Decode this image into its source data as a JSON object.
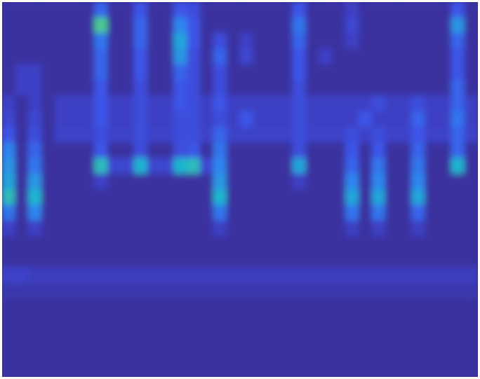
{
  "chart_data": {
    "type": "heatmap",
    "tick_labels": false,
    "clim": [
      0,
      1
    ],
    "cells": [
      [
        0,
        0,
        0,
        0,
        0,
        0,
        0,
        0.3,
        0,
        0,
        0.25,
        0,
        0,
        0.25,
        0.2,
        0,
        0,
        0,
        0,
        0,
        0,
        0,
        0.25,
        0,
        0,
        0,
        0.1,
        0,
        0,
        0,
        0,
        0,
        0,
        0,
        0.25,
        0
      ],
      [
        0,
        0,
        0,
        0,
        0,
        0,
        0,
        0.7,
        0,
        0,
        0.3,
        0,
        0,
        0.4,
        0.25,
        0,
        0,
        0,
        0,
        0,
        0,
        0,
        0.35,
        0,
        0,
        0,
        0.15,
        0,
        0,
        0,
        0,
        0,
        0,
        0,
        0.45,
        0
      ],
      [
        0,
        0,
        0,
        0,
        0,
        0,
        0,
        0.35,
        0,
        0,
        0.3,
        0,
        0,
        0.5,
        0.25,
        0,
        0.2,
        0,
        0.1,
        0,
        0,
        0,
        0.3,
        0,
        0,
        0,
        0.1,
        0,
        0,
        0,
        0,
        0,
        0,
        0,
        0.3,
        0
      ],
      [
        0,
        0,
        0,
        0,
        0,
        0,
        0,
        0.3,
        0,
        0,
        0.25,
        0,
        0,
        0.45,
        0.2,
        0,
        0.3,
        0,
        0.15,
        0,
        0,
        0,
        0.25,
        0,
        0.1,
        0,
        0,
        0,
        0,
        0,
        0,
        0,
        0,
        0,
        0.25,
        0
      ],
      [
        0,
        0.1,
        0.1,
        0,
        0,
        0,
        0,
        0.3,
        0,
        0,
        0.25,
        0,
        0,
        0.3,
        0.2,
        0,
        0.2,
        0,
        0,
        0,
        0,
        0,
        0.25,
        0,
        0,
        0,
        0,
        0,
        0,
        0,
        0,
        0,
        0,
        0,
        0.25,
        0
      ],
      [
        0,
        0.1,
        0.1,
        0,
        0,
        0,
        0,
        0.25,
        0,
        0,
        0.2,
        0,
        0,
        0.25,
        0.2,
        0,
        0.2,
        0,
        0,
        0,
        0,
        0,
        0.2,
        0,
        0,
        0,
        0,
        0,
        0,
        0,
        0,
        0,
        0,
        0,
        0.3,
        0
      ],
      [
        0.1,
        0,
        0.1,
        0,
        0.1,
        0.1,
        0.1,
        0.25,
        0.1,
        0.1,
        0.2,
        0.1,
        0.1,
        0.25,
        0.2,
        0.1,
        0.25,
        0.1,
        0.1,
        0.1,
        0.1,
        0.1,
        0.2,
        0.1,
        0.1,
        0.1,
        0.1,
        0.1,
        0.2,
        0.1,
        0.1,
        0.2,
        0.1,
        0.1,
        0.3,
        0.1
      ],
      [
        0.15,
        0,
        0.15,
        0,
        0.1,
        0.1,
        0.1,
        0.25,
        0.1,
        0.1,
        0.2,
        0.1,
        0.1,
        0.2,
        0.2,
        0.1,
        0.2,
        0.1,
        0.25,
        0.1,
        0.1,
        0.1,
        0.2,
        0.1,
        0.1,
        0.1,
        0.1,
        0.25,
        0.1,
        0.1,
        0.1,
        0.3,
        0.1,
        0.1,
        0.35,
        0.1
      ],
      [
        0.25,
        0,
        0.2,
        0,
        0.12,
        0.12,
        0.12,
        0.2,
        0.12,
        0.12,
        0.2,
        0.12,
        0.12,
        0.2,
        0.2,
        0.12,
        0.3,
        0.12,
        0.12,
        0.12,
        0.12,
        0.12,
        0.2,
        0.12,
        0.12,
        0.12,
        0.2,
        0.12,
        0.2,
        0.12,
        0.12,
        0.25,
        0.12,
        0.12,
        0.3,
        0.12
      ],
      [
        0.4,
        0,
        0.3,
        0,
        0,
        0,
        0,
        0.25,
        0,
        0,
        0.2,
        0,
        0,
        0.2,
        0.25,
        0,
        0.35,
        0,
        0,
        0,
        0,
        0,
        0.2,
        0,
        0,
        0,
        0.25,
        0,
        0.25,
        0,
        0,
        0.3,
        0,
        0,
        0.3,
        0
      ],
      [
        0.45,
        0,
        0.35,
        0,
        0,
        0,
        0,
        0.6,
        0.15,
        0.15,
        0.55,
        0.15,
        0.15,
        0.55,
        0.6,
        0.15,
        0.4,
        0,
        0,
        0,
        0,
        0,
        0.5,
        0,
        0,
        0,
        0.3,
        0,
        0.35,
        0,
        0,
        0.35,
        0,
        0,
        0.55,
        0
      ],
      [
        0.5,
        0,
        0.45,
        0,
        0,
        0,
        0,
        0.1,
        0,
        0,
        0,
        0,
        0,
        0,
        0,
        0,
        0.45,
        0,
        0,
        0,
        0,
        0,
        0.1,
        0,
        0,
        0,
        0.4,
        0,
        0.4,
        0,
        0,
        0.4,
        0,
        0,
        0,
        0
      ],
      [
        0.6,
        0,
        0.55,
        0,
        0,
        0,
        0,
        0,
        0,
        0,
        0,
        0,
        0,
        0,
        0,
        0,
        0.55,
        0,
        0,
        0,
        0,
        0,
        0,
        0,
        0,
        0,
        0.5,
        0,
        0.5,
        0,
        0,
        0.5,
        0,
        0,
        0,
        0
      ],
      [
        0.35,
        0,
        0.4,
        0,
        0,
        0,
        0,
        0,
        0,
        0,
        0,
        0,
        0,
        0,
        0,
        0,
        0.35,
        0,
        0,
        0,
        0,
        0,
        0,
        0,
        0,
        0,
        0.35,
        0,
        0.35,
        0,
        0,
        0.3,
        0,
        0,
        0,
        0
      ],
      [
        0.1,
        0,
        0.1,
        0,
        0,
        0,
        0,
        0,
        0,
        0,
        0,
        0,
        0,
        0,
        0,
        0,
        0.1,
        0,
        0,
        0,
        0,
        0,
        0,
        0,
        0,
        0,
        0.1,
        0,
        0.1,
        0,
        0,
        0.1,
        0,
        0,
        0,
        0
      ],
      [
        0,
        0,
        0,
        0,
        0,
        0,
        0,
        0,
        0,
        0,
        0,
        0,
        0,
        0,
        0,
        0,
        0,
        0,
        0,
        0,
        0,
        0,
        0,
        0,
        0,
        0,
        0,
        0,
        0,
        0,
        0,
        0,
        0,
        0,
        0,
        0
      ],
      [
        0,
        0,
        0,
        0,
        0,
        0,
        0,
        0,
        0,
        0,
        0,
        0,
        0,
        0,
        0,
        0,
        0,
        0,
        0,
        0,
        0,
        0,
        0,
        0,
        0,
        0,
        0,
        0,
        0,
        0,
        0,
        0,
        0,
        0,
        0,
        0
      ],
      [
        0.12,
        0.12,
        0.08,
        0.08,
        0.08,
        0.08,
        0.08,
        0.08,
        0.08,
        0.08,
        0.08,
        0.08,
        0.08,
        0.08,
        0.08,
        0.08,
        0.08,
        0.08,
        0.08,
        0.08,
        0.08,
        0.08,
        0.08,
        0.08,
        0.08,
        0.08,
        0.08,
        0.08,
        0.08,
        0.08,
        0.08,
        0.08,
        0.08,
        0.08,
        0.08,
        0.08
      ],
      [
        0.04,
        0.04,
        0.04,
        0.04,
        0.04,
        0.04,
        0.04,
        0.04,
        0.04,
        0.04,
        0.04,
        0.04,
        0.04,
        0.04,
        0.04,
        0.04,
        0.04,
        0.04,
        0.04,
        0.04,
        0.04,
        0.04,
        0.04,
        0.04,
        0.04,
        0.04,
        0.04,
        0.04,
        0.04,
        0.04,
        0.04,
        0.04,
        0.04,
        0.04,
        0.04,
        0.04
      ],
      [
        0,
        0,
        0,
        0,
        0,
        0,
        0,
        0,
        0,
        0,
        0,
        0,
        0,
        0,
        0,
        0,
        0,
        0,
        0,
        0,
        0,
        0,
        0,
        0,
        0,
        0,
        0,
        0,
        0,
        0,
        0,
        0,
        0,
        0,
        0,
        0
      ],
      [
        0,
        0,
        0,
        0,
        0,
        0,
        0,
        0,
        0,
        0,
        0,
        0,
        0,
        0,
        0,
        0,
        0,
        0,
        0,
        0,
        0,
        0,
        0,
        0,
        0,
        0,
        0,
        0,
        0,
        0,
        0,
        0,
        0,
        0,
        0,
        0
      ],
      [
        0,
        0,
        0,
        0,
        0,
        0,
        0,
        0,
        0,
        0,
        0,
        0,
        0,
        0,
        0,
        0,
        0,
        0,
        0,
        0,
        0,
        0,
        0,
        0,
        0,
        0,
        0,
        0,
        0,
        0,
        0,
        0,
        0,
        0,
        0,
        0
      ],
      [
        0,
        0,
        0,
        0,
        0,
        0,
        0,
        0,
        0,
        0,
        0,
        0,
        0,
        0,
        0,
        0,
        0,
        0,
        0,
        0,
        0,
        0,
        0,
        0,
        0,
        0,
        0,
        0,
        0,
        0,
        0,
        0,
        0,
        0,
        0,
        0
      ],
      [
        0,
        0,
        0,
        0,
        0,
        0,
        0,
        0,
        0,
        0,
        0,
        0,
        0,
        0,
        0,
        0,
        0,
        0,
        0,
        0,
        0,
        0,
        0,
        0,
        0,
        0,
        0,
        0,
        0,
        0,
        0,
        0,
        0,
        0,
        0,
        0
      ]
    ]
  }
}
